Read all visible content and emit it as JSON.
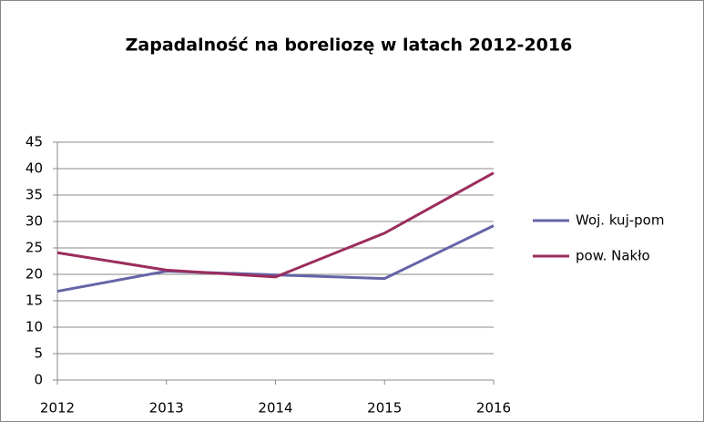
{
  "chart_data": {
    "type": "line",
    "title": "Zapadalność na boreliozę w latach 2012-2016",
    "categories": [
      "2012",
      "2013",
      "2014",
      "2015",
      "2016"
    ],
    "series": [
      {
        "name": "Woj. kuj-pom",
        "color": "#6464a8",
        "values": [
          16.8,
          20.6,
          19.9,
          19.2,
          29.2
        ]
      },
      {
        "name": "pow. Nakło",
        "color": "#9b2d5e",
        "values": [
          24.1,
          20.8,
          19.5,
          27.8,
          39.2
        ]
      }
    ],
    "ylim": [
      0,
      45
    ],
    "yticks": [
      0,
      5,
      10,
      15,
      20,
      25,
      30,
      35,
      40,
      45
    ],
    "grid": true,
    "legend": "right"
  }
}
